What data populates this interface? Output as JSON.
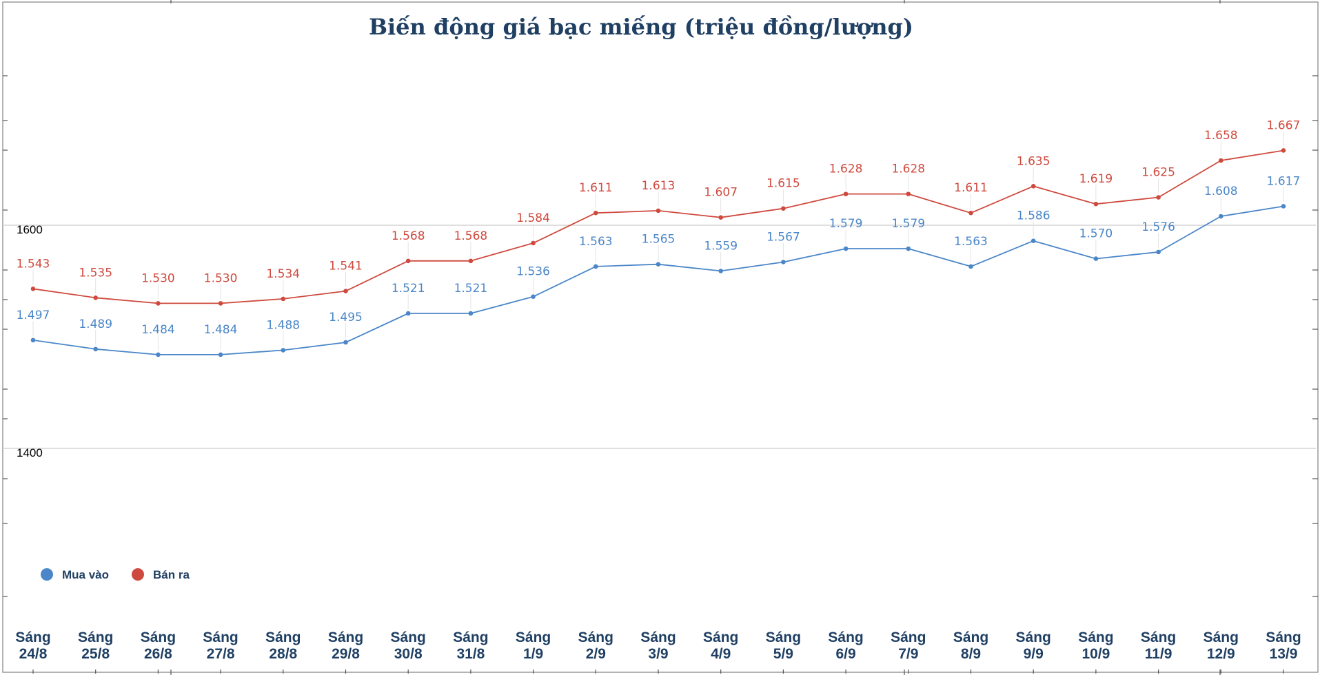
{
  "chart_data": {
    "type": "line",
    "title": "Biến động giá bạc miếng (triệu đồng/lượng)",
    "categories": [
      [
        "Sáng",
        "24/8"
      ],
      [
        "Sáng",
        "25/8"
      ],
      [
        "Sáng",
        "26/8"
      ],
      [
        "Sáng",
        "27/8"
      ],
      [
        "Sáng",
        "28/8"
      ],
      [
        "Sáng",
        "29/8"
      ],
      [
        "Sáng",
        "30/8"
      ],
      [
        "Sáng",
        "31/8"
      ],
      [
        "Sáng",
        "1/9"
      ],
      [
        "Sáng",
        "2/9"
      ],
      [
        "Sáng",
        "3/9"
      ],
      [
        "Sáng",
        "4/9"
      ],
      [
        "Sáng",
        "5/9"
      ],
      [
        "Sáng",
        "6/9"
      ],
      [
        "Sáng",
        "7/9"
      ],
      [
        "Sáng",
        "8/9"
      ],
      [
        "Sáng",
        "9/9"
      ],
      [
        "Sáng",
        "10/9"
      ],
      [
        "Sáng",
        "11/9"
      ],
      [
        "Sáng",
        "12/9"
      ],
      [
        "Sáng",
        "13/9"
      ]
    ],
    "series": [
      {
        "name": "Mua vào",
        "color": "#4a86c8",
        "values": [
          1497,
          1489,
          1484,
          1484,
          1488,
          1495,
          1521,
          1521,
          1536,
          1563,
          1565,
          1559,
          1567,
          1579,
          1579,
          1563,
          1586,
          1570,
          1576,
          1608,
          1617
        ],
        "labels": [
          "1.497",
          "1.489",
          "1.484",
          "1.484",
          "1.488",
          "1.495",
          "1.521",
          "1.521",
          "1.536",
          "1.563",
          "1.565",
          "1.559",
          "1.567",
          "1.579",
          "1.579",
          "1.563",
          "1.586",
          "1.570",
          "1.576",
          "1.608",
          "1.617"
        ]
      },
      {
        "name": "Bán ra",
        "color": "#cf4a3e",
        "values": [
          1543,
          1535,
          1530,
          1530,
          1534,
          1541,
          1568,
          1568,
          1584,
          1611,
          1613,
          1607,
          1615,
          1628,
          1628,
          1611,
          1635,
          1619,
          1625,
          1658,
          1667
        ],
        "labels": [
          "1.543",
          "1.535",
          "1.530",
          "1.530",
          "1.534",
          "1.541",
          "1.568",
          "1.568",
          "1.584",
          "1.611",
          "1.613",
          "1.607",
          "1.615",
          "1.628",
          "1.628",
          "1.611",
          "1.635",
          "1.619",
          "1.625",
          "1.658",
          "1.667"
        ]
      }
    ],
    "y_tick_labels": [
      {
        "value": 1600,
        "text": "1600"
      },
      {
        "value": 1400,
        "text": "1400"
      }
    ],
    "ylim": [
      1250,
      1800
    ],
    "grid": true,
    "legend_position": "bottom-left"
  }
}
